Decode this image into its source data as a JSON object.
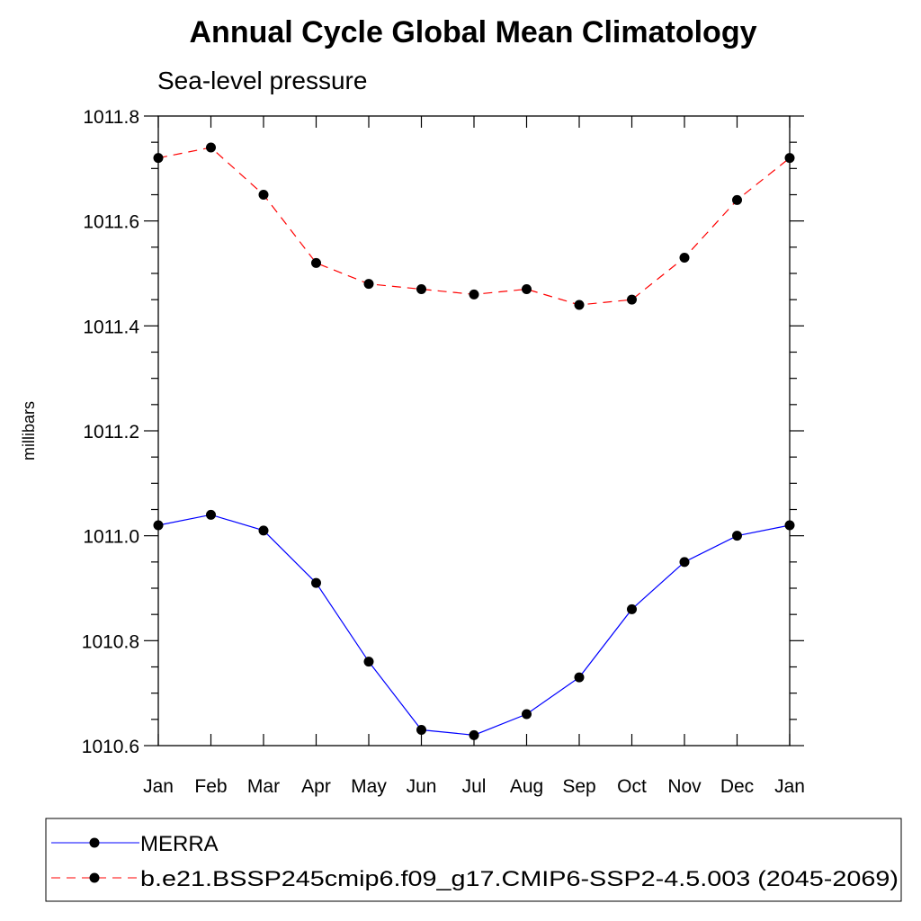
{
  "chart_data": {
    "type": "line",
    "title": "Annual Cycle Global Mean Climatology",
    "subtitle": "Sea-level pressure",
    "ylabel": "millibars",
    "xlabel": "",
    "categories": [
      "Jan",
      "Feb",
      "Mar",
      "Apr",
      "May",
      "Jun",
      "Jul",
      "Aug",
      "Sep",
      "Oct",
      "Nov",
      "Dec",
      "Jan"
    ],
    "ylim": [
      1010.6,
      1011.8
    ],
    "yticks": [
      "1010.6",
      "1010.8",
      "1011.0",
      "1011.2",
      "1011.4",
      "1011.6",
      "1011.8"
    ],
    "grid": false,
    "legend_position": "bottom",
    "series": [
      {
        "name": "MERRA",
        "color": "#0000ff",
        "line_style": "solid",
        "marker": "filled-circle",
        "values": [
          1011.02,
          1011.04,
          1011.01,
          1010.91,
          1010.76,
          1010.63,
          1010.62,
          1010.66,
          1010.73,
          1010.86,
          1010.95,
          1011.0,
          1011.02
        ]
      },
      {
        "name": "b.e21.BSSP245cmip6.f09_g17.CMIP6-SSP2-4.5.003 (2045-2069)",
        "color": "#ff0000",
        "line_style": "dashed",
        "marker": "filled-circle",
        "values": [
          1011.72,
          1011.74,
          1011.65,
          1011.52,
          1011.48,
          1011.47,
          1011.46,
          1011.47,
          1011.44,
          1011.45,
          1011.53,
          1011.64,
          1011.72
        ]
      }
    ]
  }
}
